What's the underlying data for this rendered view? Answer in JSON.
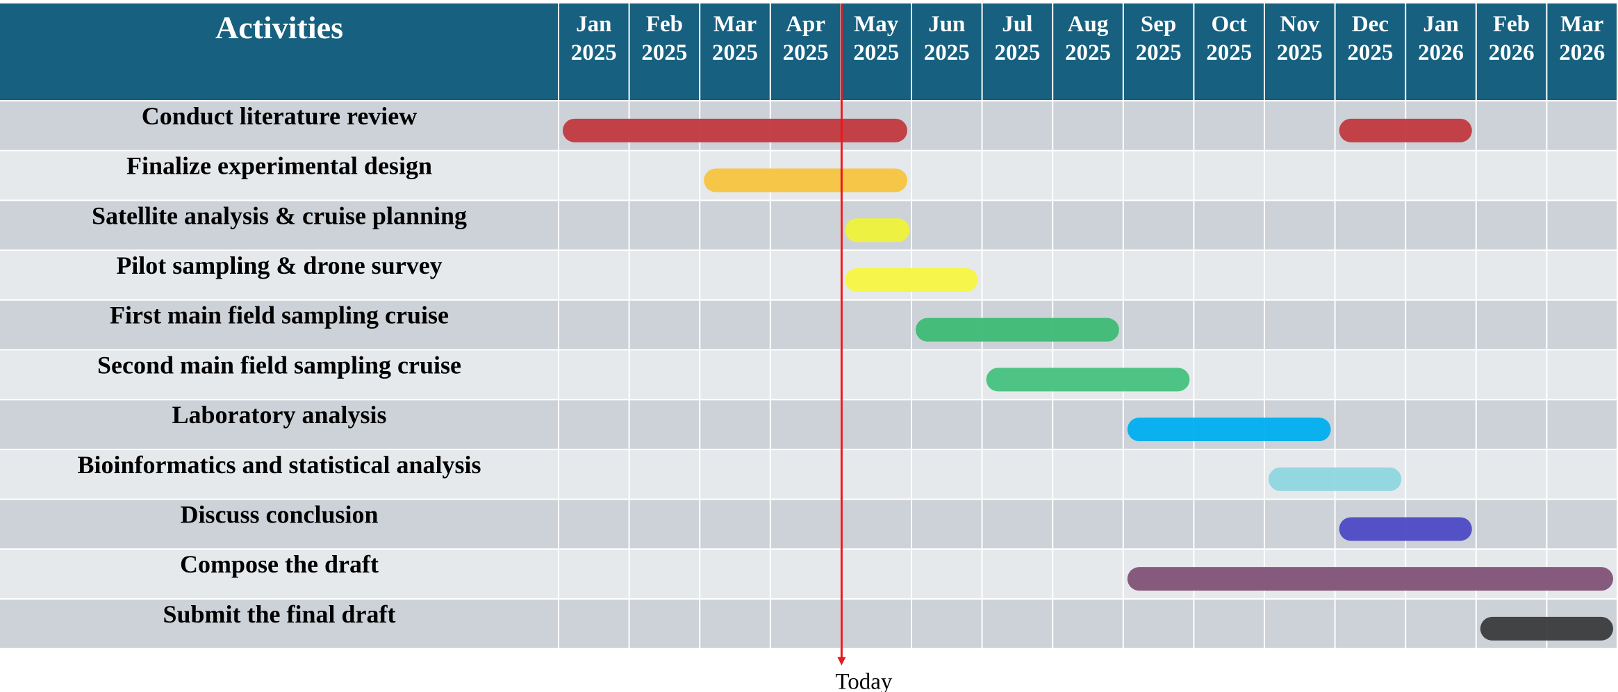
{
  "chart_data": {
    "type": "gantt",
    "header_label": "Activities",
    "months": [
      {
        "name": "Jan",
        "year": "2025"
      },
      {
        "name": "Feb",
        "year": "2025"
      },
      {
        "name": "Mar",
        "year": "2025"
      },
      {
        "name": "Apr",
        "year": "2025"
      },
      {
        "name": "May",
        "year": "2025"
      },
      {
        "name": "Jun",
        "year": "2025"
      },
      {
        "name": "Jul",
        "year": "2025"
      },
      {
        "name": "Aug",
        "year": "2025"
      },
      {
        "name": "Sep",
        "year": "2025"
      },
      {
        "name": "Oct",
        "year": "2025"
      },
      {
        "name": "Nov",
        "year": "2025"
      },
      {
        "name": "Dec",
        "year": "2025"
      },
      {
        "name": "Jan",
        "year": "2026"
      },
      {
        "name": "Feb",
        "year": "2026"
      },
      {
        "name": "Mar",
        "year": "2026"
      }
    ],
    "today": {
      "label": "Today",
      "date": "2025-05-01"
    },
    "tasks": [
      {
        "name": "Conduct literature review",
        "color": "#c0393f",
        "segments": [
          {
            "start": "2025-01-01",
            "end": "2025-05-31"
          },
          {
            "start": "2025-12-01",
            "end": "2026-01-31"
          }
        ]
      },
      {
        "name": "Finalize experimental design",
        "color": "#f7c43f",
        "segments": [
          {
            "start": "2025-03-01",
            "end": "2025-05-31"
          }
        ]
      },
      {
        "name": "Satellite analysis & cruise planning",
        "color": "#eef23a",
        "segments": [
          {
            "start": "2025-05-01",
            "end": "2025-06-01"
          }
        ]
      },
      {
        "name": "Pilot sampling & drone survey",
        "color": "#f5f542",
        "segments": [
          {
            "start": "2025-05-01",
            "end": "2025-06-30"
          }
        ]
      },
      {
        "name": "First main field sampling cruise",
        "color": "#3dbb74",
        "segments": [
          {
            "start": "2025-06-01",
            "end": "2025-08-31"
          }
        ]
      },
      {
        "name": "Second main field sampling cruise",
        "color": "#46c27e",
        "segments": [
          {
            "start": "2025-07-01",
            "end": "2025-09-30"
          }
        ]
      },
      {
        "name": "Laboratory analysis",
        "color": "#00aeef",
        "segments": [
          {
            "start": "2025-09-01",
            "end": "2025-11-30"
          }
        ]
      },
      {
        "name": "Bioinformatics and statistical analysis",
        "color": "#8ed6e0",
        "segments": [
          {
            "start": "2025-11-01",
            "end": "2025-12-31"
          }
        ]
      },
      {
        "name": "Discuss conclusion",
        "color": "#4c4ac4",
        "segments": [
          {
            "start": "2025-12-01",
            "end": "2026-01-31"
          }
        ]
      },
      {
        "name": "Compose the draft",
        "color": "#7f5276",
        "segments": [
          {
            "start": "2025-09-01",
            "end": "2026-03-31"
          }
        ]
      },
      {
        "name": "Submit the final draft",
        "color": "#3a3b3d",
        "segments": [
          {
            "start": "2026-02-01",
            "end": "2026-03-31"
          }
        ]
      }
    ],
    "colors": {
      "header_bg": "#17607f",
      "row_dark": "#cdd2d9",
      "row_light": "#e6e9ec",
      "grid": "#ffffff",
      "today_line": "#e8191c"
    }
  }
}
